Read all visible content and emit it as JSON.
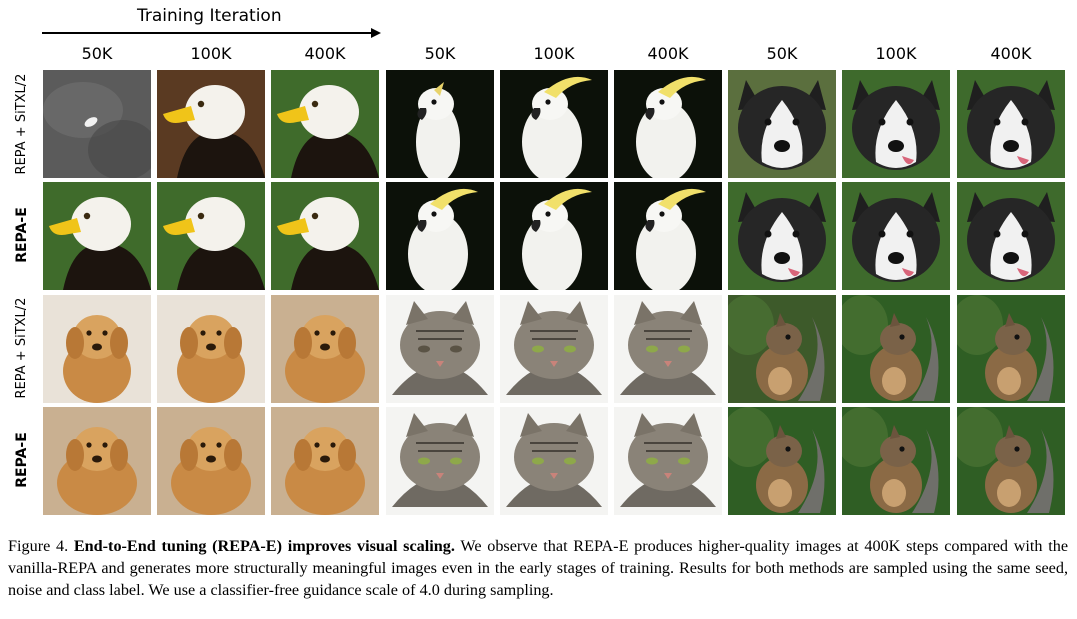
{
  "header": {
    "axis_label": "Training Iteration",
    "columns": [
      "50K",
      "100K",
      "400K",
      "50K",
      "100K",
      "400K",
      "50K",
      "100K",
      "400K"
    ]
  },
  "rows": [
    {
      "label": "REPA + SiTXL/2",
      "method": "vanilla",
      "groups": [
        "eagle",
        "cockatoo",
        "husky"
      ]
    },
    {
      "label": "REPA-E",
      "method": "repa-e",
      "groups": [
        "eagle",
        "cockatoo",
        "husky"
      ]
    },
    {
      "label": "REPA + SiTXL/2",
      "method": "vanilla",
      "groups": [
        "golden-retriever",
        "cat",
        "squirrel"
      ]
    },
    {
      "label": "REPA-E",
      "method": "repa-e",
      "groups": [
        "golden-retriever",
        "cat",
        "squirrel"
      ]
    }
  ],
  "caption": {
    "prefix": "Figure 4.",
    "title": "End-to-End tuning (REPA-E) improves visual scaling.",
    "body": "We observe that REPA-E produces higher-quality images at 400K steps compared with the vanilla-REPA and generates more structurally meaningful images even in the early stages of training. Results for both methods are sampled using the same seed, noise and class label. We use a classifier-free guidance scale of 4.0 during sampling."
  },
  "colors": {
    "dark_bg": "#0d120a",
    "grass": "#3c6a2a",
    "retriever": "#d59a55",
    "cat_gray": "#8a8378",
    "squirrel": "#8b6a45",
    "white": "#f3f3f3"
  }
}
